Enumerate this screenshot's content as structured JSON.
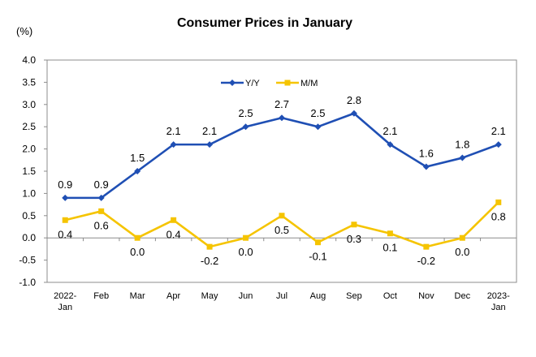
{
  "chart_data": {
    "type": "line",
    "title": "Consumer Prices in January",
    "unit": "(%)",
    "categories": [
      [
        "2022-",
        "Jan"
      ],
      [
        "Feb"
      ],
      [
        "Mar"
      ],
      [
        "Apr"
      ],
      [
        "May"
      ],
      [
        "Jun"
      ],
      [
        "Jul"
      ],
      [
        "Aug"
      ],
      [
        "Sep"
      ],
      [
        "Oct"
      ],
      [
        "Nov"
      ],
      [
        "Dec"
      ],
      [
        "2023-",
        "Jan"
      ]
    ],
    "ylim": [
      -1.0,
      4.0
    ],
    "yticks": [
      "-1.0",
      "-0.5",
      "0.0",
      "0.5",
      "1.0",
      "1.5",
      "2.0",
      "2.5",
      "3.0",
      "3.5",
      "4.0"
    ],
    "grid": false,
    "legend": "top-left",
    "series": [
      {
        "name": "Y/Y",
        "color": "#1f4fb4",
        "marker": "diamond",
        "values": [
          0.9,
          0.9,
          1.5,
          2.1,
          2.1,
          2.5,
          2.7,
          2.5,
          2.8,
          2.1,
          1.6,
          1.8,
          2.1
        ],
        "labels": [
          "0.9",
          "0.9",
          "1.5",
          "2.1",
          "2.1",
          "2.5",
          "2.7",
          "2.5",
          "2.8",
          "2.1",
          "1.6",
          "1.8",
          "2.1"
        ]
      },
      {
        "name": "M/M",
        "color": "#f5c400",
        "marker": "square",
        "values": [
          0.4,
          0.6,
          0.0,
          0.4,
          -0.2,
          0.0,
          0.5,
          -0.1,
          0.3,
          0.1,
          -0.2,
          0.0,
          0.8
        ],
        "labels": [
          "0.4",
          "0.6",
          "0.0",
          "0.4",
          "-0.2",
          "0.0",
          "0.5",
          "-0.1",
          "0.3",
          "0.1",
          "-0.2",
          "0.0",
          "0.8"
        ]
      }
    ]
  }
}
